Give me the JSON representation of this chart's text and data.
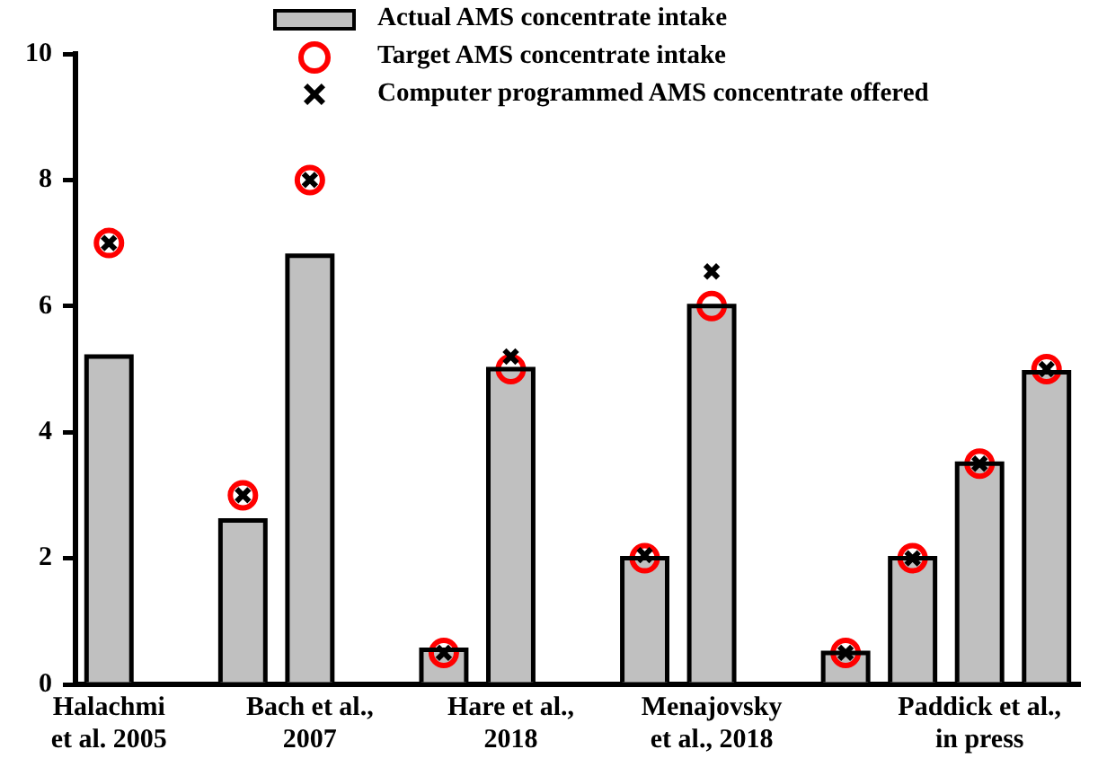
{
  "chart_data": {
    "type": "bar",
    "categories": [
      "Halachmi\net al. 2005",
      null,
      null,
      "Bach et al.,\n2007",
      null,
      null,
      "Hare et al.,\n2018",
      null,
      null,
      "Menajovsky\net al., 2018",
      null,
      null,
      null,
      "Paddick et al.,\nin press",
      null
    ],
    "series": [
      {
        "name": "Actual AMS concentrate intake",
        "color": "#c0c0c0",
        "values": [
          5.2,
          null,
          2.6,
          6.8,
          null,
          0.55,
          5.0,
          null,
          2.0,
          6.0,
          null,
          0.5,
          2.0,
          3.5,
          4.95
        ]
      },
      {
        "name": "Target AMS concentrate intake",
        "type": "scatter",
        "marker": "circle",
        "color": "#ff0000",
        "values": [
          7,
          null,
          3,
          8,
          null,
          0.5,
          5,
          null,
          2,
          6,
          null,
          0.5,
          2,
          3.5,
          5
        ]
      },
      {
        "name": "Computer programmed AMS concentrate offered",
        "type": "scatter",
        "marker": "cross",
        "color": "#000000",
        "values": [
          7,
          null,
          3,
          8,
          null,
          0.5,
          5.2,
          null,
          2.05,
          6.55,
          null,
          0.5,
          2,
          3.5,
          5
        ]
      }
    ],
    "ylim": [
      0,
      10
    ],
    "yticks": [
      0,
      2,
      4,
      6,
      8,
      10
    ],
    "grid": false,
    "legend": "top"
  }
}
